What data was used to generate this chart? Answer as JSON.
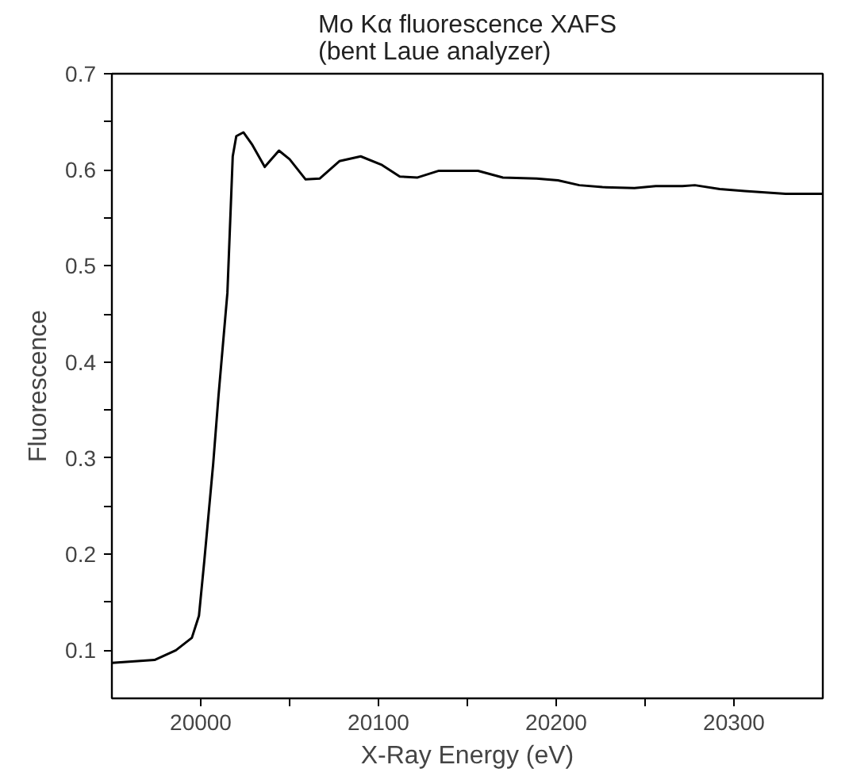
{
  "chart_data": {
    "type": "line",
    "title": "Mo Kα fluorescence XAFS\n(bent Laue analyzer)",
    "xlabel": "X-Ray Energy (eV)",
    "ylabel": "Fluorescence",
    "x": [
      19950,
      19974,
      19986,
      19995,
      19999,
      20002,
      20007,
      20010,
      20015,
      20018,
      20020,
      20024,
      20029,
      20036,
      20044,
      20050,
      20059,
      20067,
      20078,
      20090,
      20102,
      20112,
      20122,
      20134,
      20143,
      20156,
      20170,
      20189,
      20201,
      20213,
      20226,
      20244,
      20256,
      20271,
      20278,
      20292,
      20306,
      20329,
      20350
    ],
    "series": [
      {
        "color": "#000000",
        "values": [
          0.087,
          0.09,
          0.1,
          0.113,
          0.136,
          0.193,
          0.294,
          0.365,
          0.472,
          0.614,
          0.635,
          0.639,
          0.626,
          0.603,
          0.62,
          0.611,
          0.59,
          0.591,
          0.609,
          0.614,
          0.605,
          0.593,
          0.592,
          0.599,
          0.599,
          0.599,
          0.592,
          0.591,
          0.589,
          0.584,
          0.582,
          0.581,
          0.583,
          0.583,
          0.584,
          0.58,
          0.578,
          0.575,
          0.575
        ]
      }
    ],
    "xlim": [
      19950,
      20350
    ],
    "ylim": [
      0.05,
      0.7
    ],
    "xticks": [
      20000,
      {
        "value": 20050,
        "label": null
      },
      20100,
      {
        "value": 20150,
        "label": null
      },
      20200,
      {
        "value": 20250,
        "label": null
      },
      20300
    ],
    "yticks": [
      0.1,
      {
        "value": 0.15,
        "label": null
      },
      0.2,
      {
        "value": 0.25,
        "label": null
      },
      0.3,
      {
        "value": 0.35,
        "label": null
      },
      0.4,
      {
        "value": 0.45,
        "label": null
      },
      0.5,
      {
        "value": 0.55,
        "label": null
      },
      0.6,
      {
        "value": 0.65,
        "label": null
      },
      0.7
    ],
    "grid": false,
    "marker": "none",
    "line_style": "solid"
  }
}
